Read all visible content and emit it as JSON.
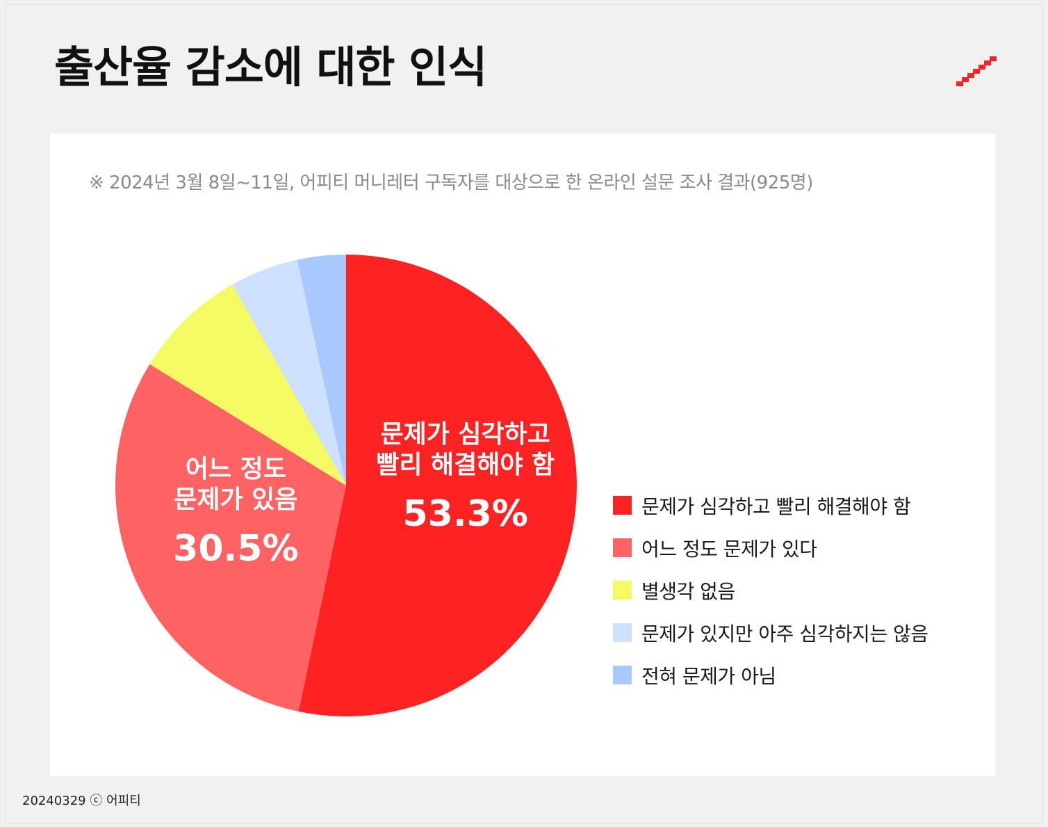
{
  "header": {
    "title": "출산율 감소에 대한 인식",
    "logo_icon": "brand-stairs-logo-icon",
    "logo_color": "#ff2020"
  },
  "chart_data": {
    "type": "pie",
    "title": "출산율 감소에 대한 인식",
    "subtitle": "※ 2024년 3월 8일~11일, 어피티 머니레터 구독자를 대상으로 한 온라인 설문 조사 결과(925명)",
    "start_angle": "12 o'clock, clockwise",
    "legend_position": "right",
    "slices": [
      {
        "label": "문제가 심각하고 빨리 해결해야 함",
        "value": 53.3,
        "value_label": "53.3%",
        "inner_label": [
          "문제가 심각하고",
          "빨리 해결해야 함"
        ],
        "color": "#ff2222"
      },
      {
        "label": "어느 정도 문제가 있다",
        "value": 30.5,
        "value_label": "30.5%",
        "inner_label": [
          "어느 정도",
          "문제가 있음"
        ],
        "color": "#ff6262"
      },
      {
        "label": "별생각 없음",
        "value": 8.0,
        "color": "#f4fb62"
      },
      {
        "label": "문제가 있지만 아주 심각하지는 않음",
        "value": 4.8,
        "color": "#cde0fd"
      },
      {
        "label": "전혀 문제가 아님",
        "value": 3.4,
        "color": "#a9c9fc"
      }
    ]
  },
  "footer": {
    "text": "20240329 ⓒ 어피티"
  }
}
